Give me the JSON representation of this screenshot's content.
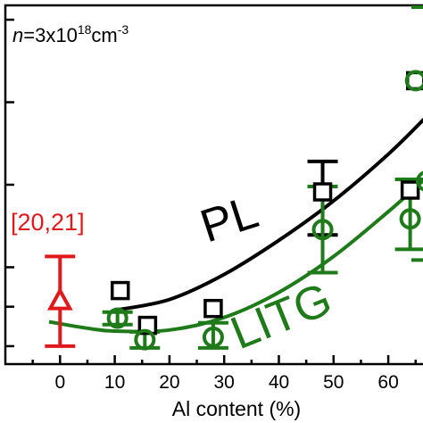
{
  "chart_data": {
    "type": "scatter",
    "xlabel": "Al content (%)",
    "xticks": [
      0,
      10,
      20,
      30,
      40,
      50,
      60
    ],
    "xlim": [
      -10,
      67
    ],
    "ylim": [
      0,
      1
    ],
    "annotation": {
      "n_prefix": "n",
      "n_eq": "=3x10",
      "n_exp": "18",
      "n_unit": "cm",
      "n_unit_exp": "-3"
    },
    "colors": {
      "pl": "#000000",
      "litg": "#1f7a1a",
      "ref": "#e0191c"
    },
    "series": [
      {
        "name": "PL",
        "marker": "square",
        "points": [
          {
            "x": 11,
            "y": 0.205
          },
          {
            "x": 16,
            "y": 0.108
          },
          {
            "x": 28,
            "y": 0.155
          },
          {
            "x": 48,
            "y": 0.48
          },
          {
            "x": 65,
            "y": 0.79
          },
          {
            "x": 64,
            "y": 0.485
          }
        ],
        "errorbars": [
          {
            "x": 48,
            "ylow": 0.36,
            "yhigh": 0.565
          }
        ],
        "fit": [
          {
            "x": 10,
            "y": 0.15
          },
          {
            "x": 20,
            "y": 0.18
          },
          {
            "x": 30,
            "y": 0.25
          },
          {
            "x": 40,
            "y": 0.345
          },
          {
            "x": 50,
            "y": 0.455
          },
          {
            "x": 60,
            "y": 0.585
          },
          {
            "x": 67,
            "y": 0.69
          }
        ]
      },
      {
        "name": "LITG",
        "marker": "circle",
        "points": [
          {
            "x": 10.5,
            "y": 0.128
          },
          {
            "x": 15.5,
            "y": 0.068
          },
          {
            "x": 28,
            "y": 0.075
          },
          {
            "x": 48,
            "y": 0.375
          },
          {
            "x": 65,
            "y": 0.79
          },
          {
            "x": 64,
            "y": 0.405
          },
          {
            "x": 67,
            "y": 0.51
          }
        ],
        "errorbars": [
          {
            "x": 10.5,
            "ylow": 0.11,
            "yhigh": 0.145
          },
          {
            "x": 15.5,
            "ylow": 0.045,
            "yhigh": 0.09
          },
          {
            "x": 28,
            "ylow": 0.045,
            "yhigh": 0.115
          },
          {
            "x": 48,
            "ylow": 0.255,
            "yhigh": 0.495
          },
          {
            "x": 64,
            "ylow": 0.32,
            "yhigh": 0.515
          },
          {
            "x": 67,
            "ylow": 0.29,
            "yhigh": 0.995
          }
        ],
        "fit": [
          {
            "x": -2,
            "y": 0.118
          },
          {
            "x": 5,
            "y": 0.1
          },
          {
            "x": 10,
            "y": 0.092
          },
          {
            "x": 20,
            "y": 0.095
          },
          {
            "x": 30,
            "y": 0.13
          },
          {
            "x": 40,
            "y": 0.2
          },
          {
            "x": 50,
            "y": 0.3
          },
          {
            "x": 60,
            "y": 0.425
          },
          {
            "x": 67,
            "y": 0.52
          }
        ]
      },
      {
        "name": "[20,21]",
        "marker": "triangle",
        "points": [
          {
            "x": 0,
            "y": 0.175
          }
        ],
        "errorbars": [
          {
            "x": 0,
            "ylow": 0.05,
            "yhigh": 0.3
          }
        ]
      }
    ]
  }
}
